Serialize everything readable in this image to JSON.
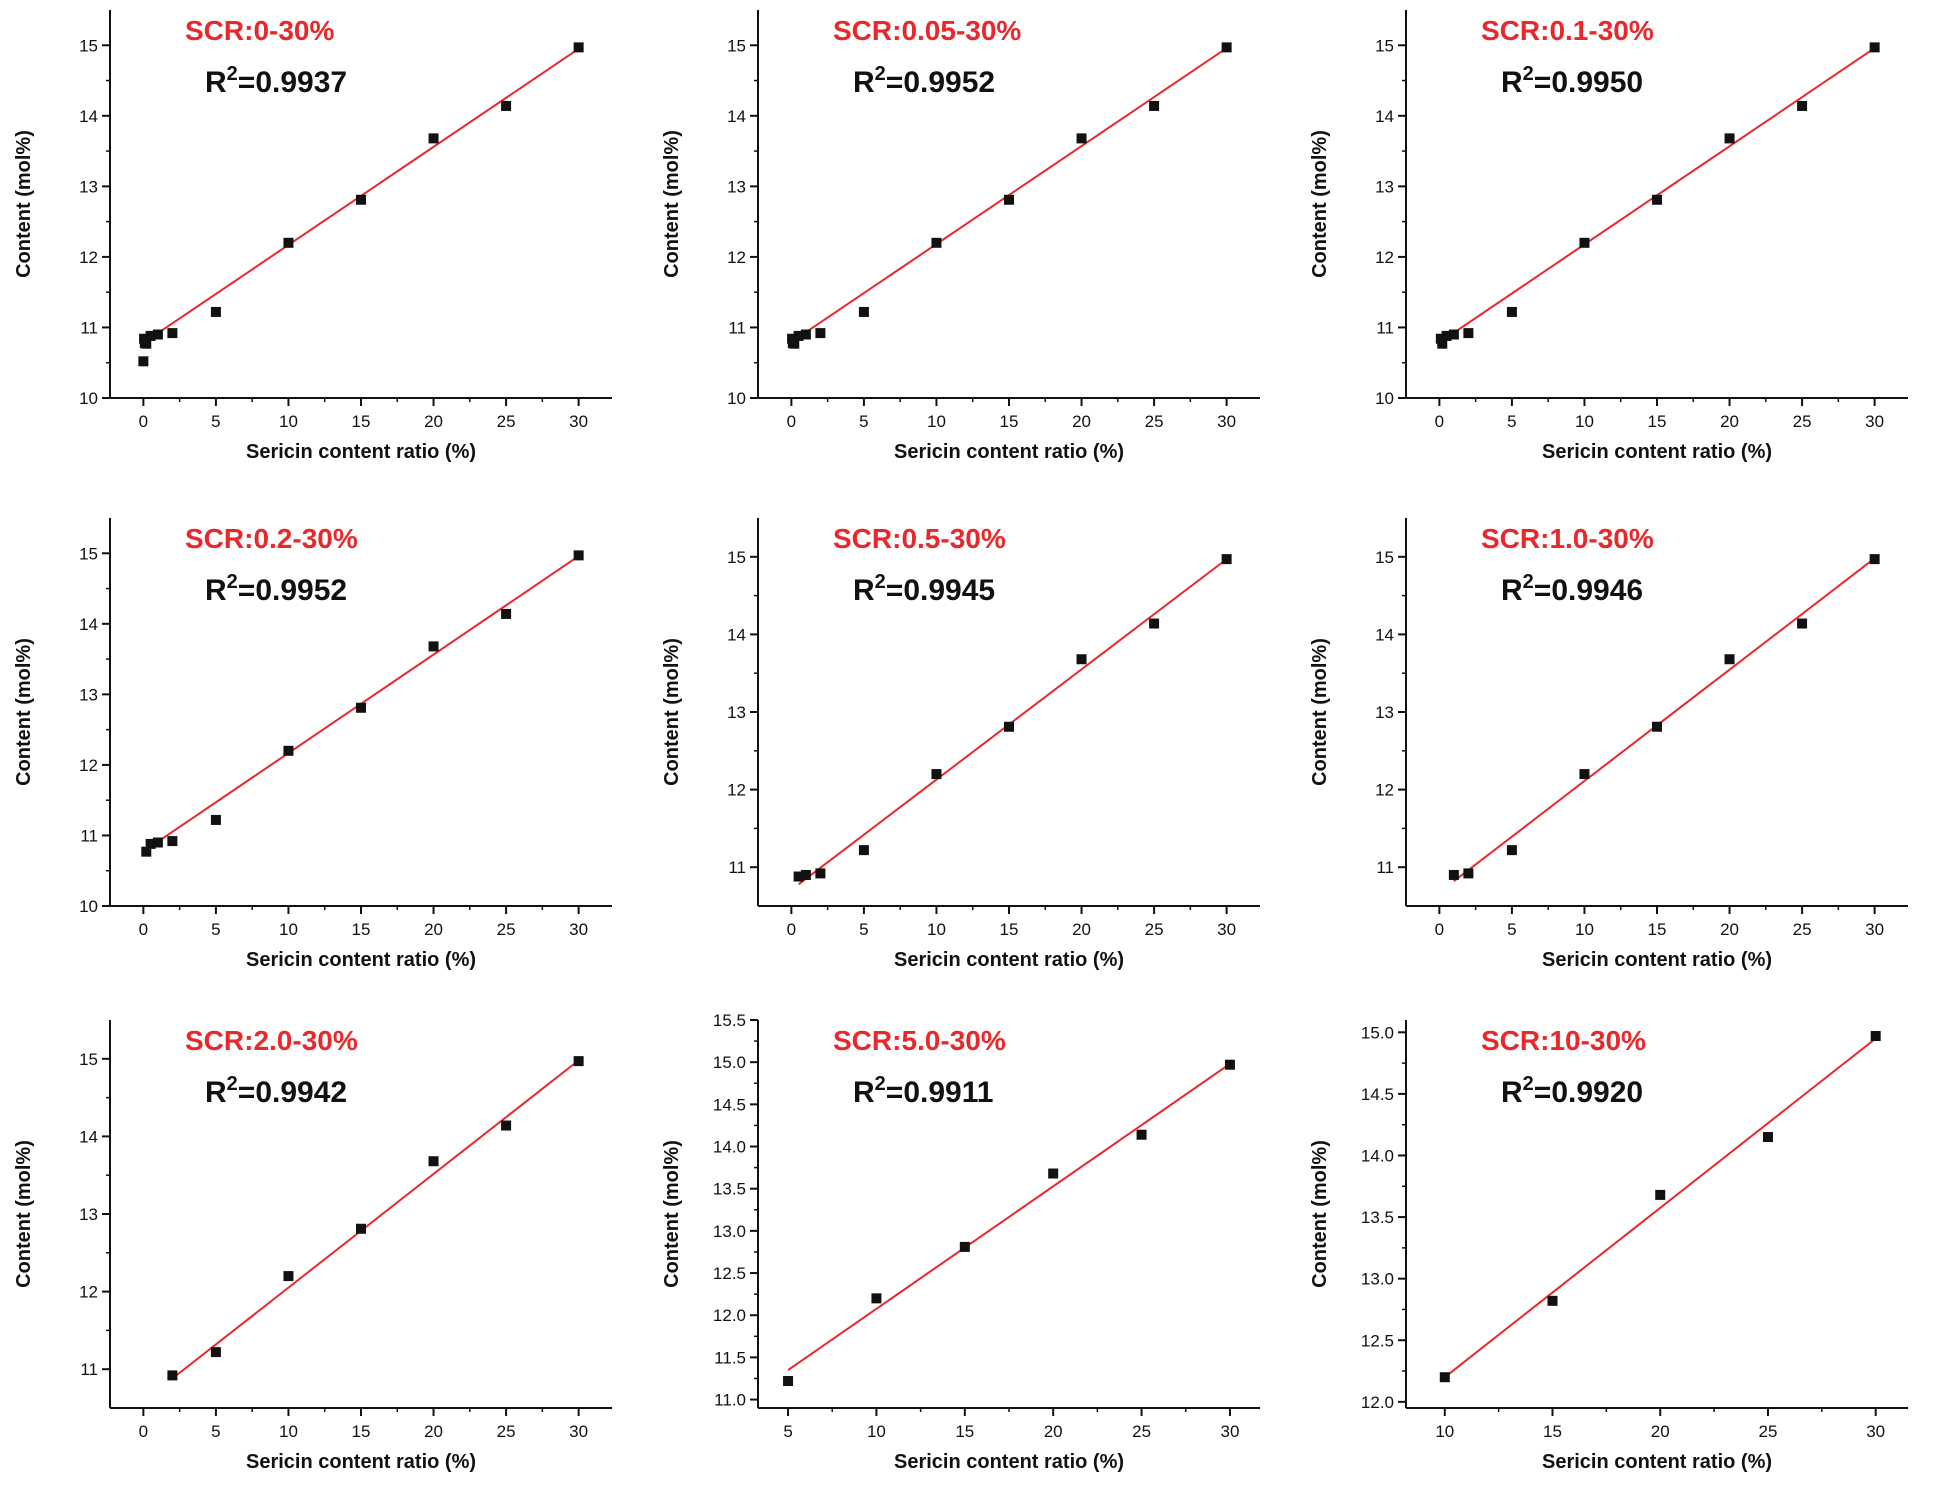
{
  "figure": {
    "ylabel": "Content (mol%)",
    "xlabel": "Sericin content ratio (%)"
  },
  "chart_data": [
    {
      "type": "scatter",
      "title": "SCR:0-30%",
      "r2_prefix": "R",
      "r2_exp": "2",
      "r2_value": "=0.9937",
      "xlabel": "Sericin content ratio (%)",
      "ylabel": "Content (mol%)",
      "xlim": [
        -2.3,
        32.3
      ],
      "ylim": [
        10,
        15.5
      ],
      "xticks": [
        0,
        5,
        10,
        15,
        20,
        25,
        30
      ],
      "yticks": [
        10,
        11,
        12,
        13,
        14,
        15
      ],
      "ytick_labels": [
        "10",
        "11",
        "12",
        "13",
        "14",
        "15"
      ],
      "x": [
        0,
        0.05,
        0.1,
        0.2,
        0.5,
        1,
        2,
        5,
        10,
        15,
        20,
        25,
        30
      ],
      "y": [
        10.52,
        10.84,
        10.78,
        10.77,
        10.88,
        10.9,
        10.92,
        11.22,
        12.2,
        12.81,
        13.68,
        14.14,
        14.97
      ],
      "fit": {
        "x": [
          0,
          30
        ],
        "y": [
          10.78,
          14.95
        ]
      },
      "colors": {
        "fit": "#e8282a",
        "points": "#111111",
        "title": "#e8282a"
      }
    },
    {
      "type": "scatter",
      "title": "SCR:0.05-30%",
      "r2_prefix": "R",
      "r2_exp": "2",
      "r2_value": "=0.9952",
      "xlabel": "Sericin content ratio (%)",
      "ylabel": "Content (mol%)",
      "xlim": [
        -2.3,
        32.3
      ],
      "ylim": [
        10,
        15.5
      ],
      "xticks": [
        0,
        5,
        10,
        15,
        20,
        25,
        30
      ],
      "yticks": [
        10,
        11,
        12,
        13,
        14,
        15
      ],
      "ytick_labels": [
        "10",
        "11",
        "12",
        "13",
        "14",
        "15"
      ],
      "x": [
        0.05,
        0.1,
        0.2,
        0.5,
        1,
        2,
        5,
        10,
        15,
        20,
        25,
        30
      ],
      "y": [
        10.84,
        10.78,
        10.77,
        10.88,
        10.9,
        10.92,
        11.22,
        12.2,
        12.81,
        13.68,
        14.14,
        14.97
      ],
      "fit": {
        "x": [
          0.05,
          30
        ],
        "y": [
          10.8,
          14.96
        ]
      },
      "colors": {
        "fit": "#e8282a",
        "points": "#111111",
        "title": "#e8282a"
      }
    },
    {
      "type": "scatter",
      "title": "SCR:0.1-30%",
      "r2_prefix": "R",
      "r2_exp": "2",
      "r2_value": "=0.9950",
      "xlabel": "Sericin content ratio (%)",
      "ylabel": "Content (mol%)",
      "xlim": [
        -2.3,
        32.3
      ],
      "ylim": [
        10,
        15.5
      ],
      "xticks": [
        0,
        5,
        10,
        15,
        20,
        25,
        30
      ],
      "yticks": [
        10,
        11,
        12,
        13,
        14,
        15
      ],
      "ytick_labels": [
        "10",
        "11",
        "12",
        "13",
        "14",
        "15"
      ],
      "x": [
        0.1,
        0.2,
        0.5,
        1,
        2,
        5,
        10,
        15,
        20,
        25,
        30
      ],
      "y": [
        10.84,
        10.77,
        10.88,
        10.9,
        10.92,
        11.22,
        12.2,
        12.81,
        13.68,
        14.14,
        14.97
      ],
      "fit": {
        "x": [
          0.1,
          30
        ],
        "y": [
          10.8,
          14.96
        ]
      },
      "colors": {
        "fit": "#e8282a",
        "points": "#111111",
        "title": "#e8282a"
      }
    },
    {
      "type": "scatter",
      "title": "SCR:0.2-30%",
      "r2_prefix": "R",
      "r2_exp": "2",
      "r2_value": "=0.9952",
      "xlabel": "Sericin content ratio (%)",
      "ylabel": "Content (mol%)",
      "xlim": [
        -2.3,
        32.3
      ],
      "ylim": [
        10,
        15.5
      ],
      "xticks": [
        0,
        5,
        10,
        15,
        20,
        25,
        30
      ],
      "yticks": [
        10,
        11,
        12,
        13,
        14,
        15
      ],
      "ytick_labels": [
        "10",
        "11",
        "12",
        "13",
        "14",
        "15"
      ],
      "x": [
        0.2,
        0.5,
        1,
        2,
        5,
        10,
        15,
        20,
        25,
        30
      ],
      "y": [
        10.77,
        10.88,
        10.9,
        10.92,
        11.22,
        12.2,
        12.81,
        13.68,
        14.14,
        14.97
      ],
      "fit": {
        "x": [
          0.2,
          30
        ],
        "y": [
          10.8,
          14.96
        ]
      },
      "colors": {
        "fit": "#e8282a",
        "points": "#111111",
        "title": "#e8282a"
      }
    },
    {
      "type": "scatter",
      "title": "SCR:0.5-30%",
      "r2_prefix": "R",
      "r2_exp": "2",
      "r2_value": "=0.9945",
      "xlabel": "Sericin content ratio (%)",
      "ylabel": "Content (mol%)",
      "xlim": [
        -2.3,
        32.3
      ],
      "ylim": [
        10.5,
        15.5
      ],
      "xticks": [
        0,
        5,
        10,
        15,
        20,
        25,
        30
      ],
      "yticks": [
        11,
        12,
        13,
        14,
        15
      ],
      "ytick_labels": [
        "11",
        "12",
        "13",
        "14",
        "15"
      ],
      "x": [
        0.5,
        1,
        2,
        5,
        10,
        15,
        20,
        25,
        30
      ],
      "y": [
        10.88,
        10.9,
        10.92,
        11.22,
        12.2,
        12.81,
        13.68,
        14.14,
        14.97
      ],
      "fit": {
        "x": [
          0.5,
          30
        ],
        "y": [
          10.78,
          14.97
        ]
      },
      "colors": {
        "fit": "#e8282a",
        "points": "#111111",
        "title": "#e8282a"
      }
    },
    {
      "type": "scatter",
      "title": "SCR:1.0-30%",
      "r2_prefix": "R",
      "r2_exp": "2",
      "r2_value": "=0.9946",
      "xlabel": "Sericin content ratio (%)",
      "ylabel": "Content (mol%)",
      "xlim": [
        -2.3,
        32.3
      ],
      "ylim": [
        10.5,
        15.5
      ],
      "xticks": [
        0,
        5,
        10,
        15,
        20,
        25,
        30
      ],
      "yticks": [
        11,
        12,
        13,
        14,
        15
      ],
      "ytick_labels": [
        "11",
        "12",
        "13",
        "14",
        "15"
      ],
      "x": [
        1,
        2,
        5,
        10,
        15,
        20,
        25,
        30
      ],
      "y": [
        10.9,
        10.92,
        11.22,
        12.2,
        12.81,
        13.68,
        14.14,
        14.97
      ],
      "fit": {
        "x": [
          1,
          30
        ],
        "y": [
          10.82,
          14.98
        ]
      },
      "colors": {
        "fit": "#e8282a",
        "points": "#111111",
        "title": "#e8282a"
      }
    },
    {
      "type": "scatter",
      "title": "SCR:2.0-30%",
      "r2_prefix": "R",
      "r2_exp": "2",
      "r2_value": "=0.9942",
      "xlabel": "Sericin content ratio (%)",
      "ylabel": "Content (mol%)",
      "xlim": [
        -2.3,
        32.3
      ],
      "ylim": [
        10.5,
        15.5
      ],
      "xticks": [
        0,
        5,
        10,
        15,
        20,
        25,
        30
      ],
      "yticks": [
        11,
        12,
        13,
        14,
        15
      ],
      "ytick_labels": [
        "11",
        "12",
        "13",
        "14",
        "15"
      ],
      "x": [
        2,
        5,
        10,
        15,
        20,
        25,
        30
      ],
      "y": [
        10.92,
        11.22,
        12.2,
        12.81,
        13.68,
        14.14,
        14.97
      ],
      "fit": {
        "x": [
          2,
          30
        ],
        "y": [
          10.88,
          14.98
        ]
      },
      "colors": {
        "fit": "#e8282a",
        "points": "#111111",
        "title": "#e8282a"
      }
    },
    {
      "type": "scatter",
      "title": "SCR:5.0-30%",
      "r2_prefix": "R",
      "r2_exp": "2",
      "r2_value": "=0.9911",
      "xlabel": "Sericin content ratio (%)",
      "ylabel": "Content (mol%)",
      "xlim": [
        3.3,
        31.7
      ],
      "ylim": [
        10.9,
        15.5
      ],
      "xticks": [
        5,
        10,
        15,
        20,
        25,
        30
      ],
      "yticks": [
        11,
        11.5,
        12,
        12.5,
        13,
        13.5,
        14,
        14.5,
        15,
        15.5
      ],
      "ytick_labels": [
        "11.0",
        "11.5",
        "12.0",
        "12.5",
        "13.0",
        "13.5",
        "14.0",
        "14.5",
        "15.0",
        "15.5"
      ],
      "x": [
        5,
        10,
        15,
        20,
        25,
        30
      ],
      "y": [
        11.22,
        12.2,
        12.81,
        13.68,
        14.14,
        14.97
      ],
      "fit": {
        "x": [
          5,
          30
        ],
        "y": [
          11.35,
          14.98
        ]
      },
      "colors": {
        "fit": "#e8282a",
        "points": "#111111",
        "title": "#e8282a"
      }
    },
    {
      "type": "scatter",
      "title": "SCR:10-30%",
      "r2_prefix": "R",
      "r2_exp": "2",
      "r2_value": "=0.9920",
      "xlabel": "Sericin content ratio (%)",
      "ylabel": "Content (mol%)",
      "xlim": [
        8.2,
        31.5
      ],
      "ylim": [
        11.95,
        15.1
      ],
      "xticks": [
        10,
        15,
        20,
        25,
        30
      ],
      "yticks": [
        12,
        12.5,
        13,
        13.5,
        14,
        14.5,
        15
      ],
      "ytick_labels": [
        "12.0",
        "12.5",
        "13.0",
        "13.5",
        "14.0",
        "14.5",
        "15.0"
      ],
      "x": [
        10,
        15,
        20,
        25,
        30
      ],
      "y": [
        12.2,
        12.82,
        13.68,
        14.15,
        14.97
      ],
      "fit": {
        "x": [
          10,
          30
        ],
        "y": [
          12.2,
          14.95
        ]
      },
      "colors": {
        "fit": "#e8282a",
        "points": "#111111",
        "title": "#e8282a"
      }
    }
  ]
}
